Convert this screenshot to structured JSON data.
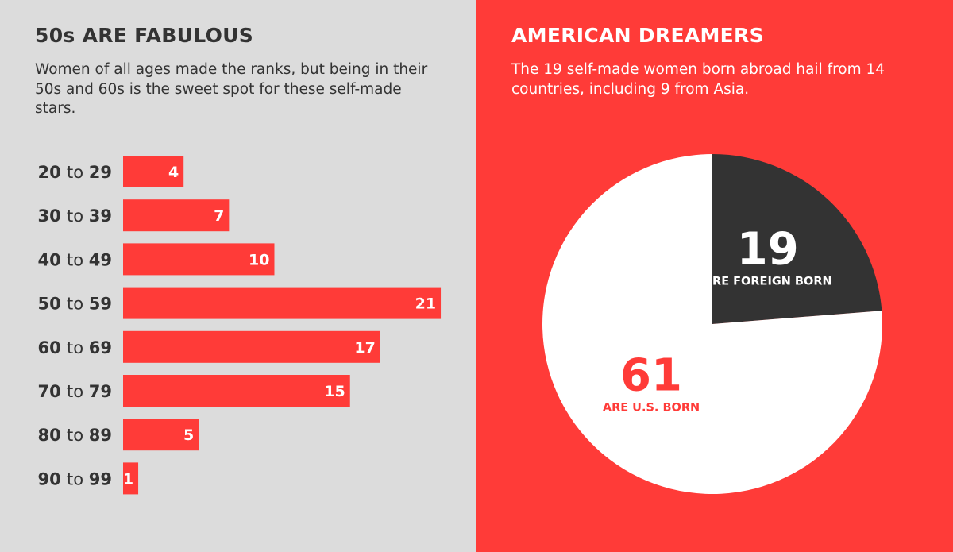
{
  "left_panel": {
    "heading": "50s ARE FABULOUS",
    "subtitle": "Women of all ages made the ranks, but being in their 50s and 60s is the sweet spot for these self-made stars."
  },
  "right_panel": {
    "heading": "AMERICAN DREAMERS",
    "subtitle": "The 19 self-made women born abroad hail from 14 countries, including 9 from Asia."
  },
  "colors": {
    "left_background": "#dcdcdc",
    "right_background": "#ff3b38",
    "bar": "#ff3b38",
    "dark_slice": "#333333",
    "white_slice": "#ffffff",
    "text_dark": "#333333"
  },
  "chart_data": [
    {
      "type": "bar",
      "orientation": "horizontal",
      "categories": [
        {
          "from": "20",
          "sep": "to",
          "to": "29"
        },
        {
          "from": "30",
          "sep": "to",
          "to": "39"
        },
        {
          "from": "40",
          "sep": "to",
          "to": "49"
        },
        {
          "from": "50",
          "sep": "to",
          "to": "59"
        },
        {
          "from": "60",
          "sep": "to",
          "to": "69"
        },
        {
          "from": "70",
          "sep": "to",
          "to": "79"
        },
        {
          "from": "80",
          "sep": "to",
          "to": "89"
        },
        {
          "from": "90",
          "sep": "to",
          "to": "99"
        }
      ],
      "values": [
        4,
        7,
        10,
        21,
        17,
        15,
        5,
        1
      ],
      "data_labels": true,
      "grid": false
    },
    {
      "type": "pie",
      "slices": [
        {
          "value": 19,
          "label": "19",
          "caption": "ARE FOREIGN BORN",
          "color": "#333333",
          "text_color": "#ffffff"
        },
        {
          "value": 61,
          "label": "61",
          "caption": "ARE U.S. BORN",
          "color": "#ffffff",
          "text_color": "#ff3b38"
        }
      ]
    }
  ]
}
